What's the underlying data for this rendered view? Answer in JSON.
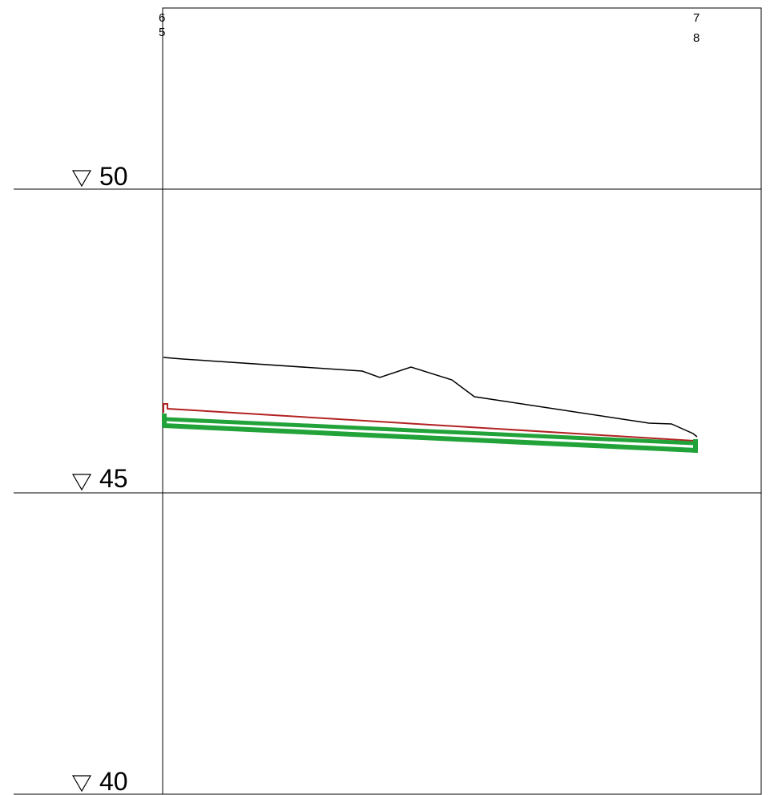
{
  "profile": {
    "elevation_marks": [
      {
        "value": 50,
        "label": "50"
      },
      {
        "value": 45,
        "label": "45"
      },
      {
        "value": 40,
        "label": "40"
      }
    ],
    "stations": {
      "left": {
        "top": "6",
        "bottom": "5"
      },
      "right": {
        "top": "7",
        "bottom": "8"
      }
    },
    "colors": {
      "frame": "#000000",
      "ground": "#000000",
      "pipe_invert_red": "#b22222",
      "pipe_green": "#22a33a"
    },
    "marker_icon": "datum-triangle-icon"
  }
}
